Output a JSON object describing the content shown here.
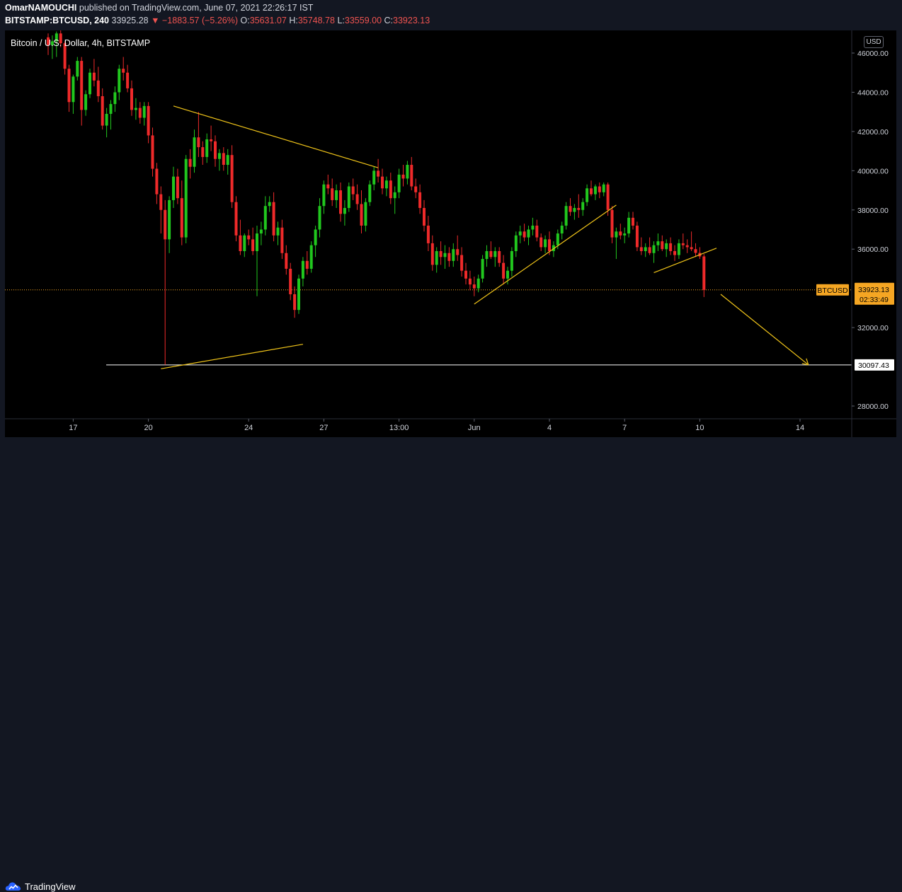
{
  "header": {
    "author": "OmarNAMOUCHI",
    "published_text": " published on TradingView.com, June 07, 2021 22:26:17 IST",
    "symbol": "BITSTAMP:BTCUSD, 240",
    "last": "33925.28",
    "arrow": "▼",
    "change": "−1883.57 (−5.26%)",
    "o_label": "O:",
    "o_value": "35631.07",
    "h_label": "H:",
    "h_value": "35748.78",
    "l_label": "L:",
    "l_value": "33559.00",
    "c_label": "C:",
    "c_value": "33923.13"
  },
  "chart_title": "Bitcoin / U.S. Dollar, 4h, BITSTAMP",
  "currency_badge": "USD",
  "footer": {
    "brand": "TradingView"
  },
  "colors": {
    "up": "#26a69a",
    "up_bright": "#21c71e",
    "down": "#ef2a2a",
    "trendline": "#f0c419",
    "price_tag": "#f5a623"
  },
  "chart_data": {
    "type": "candlestick",
    "title": "Bitcoin / U.S. Dollar, 4h, BITSTAMP",
    "ylim": [
      27000,
      47200
    ],
    "y_ticks": [
      "46000.00",
      "44000.00",
      "42000.00",
      "40000.00",
      "38000.00",
      "36000.00",
      "32000.00",
      "28000.00"
    ],
    "y_tick_values": [
      46000,
      44000,
      42000,
      40000,
      38000,
      36000,
      32000,
      28000
    ],
    "x_labels": [
      "17",
      "20",
      "24",
      "27",
      "13:00",
      "Jun",
      "4",
      "7",
      "10",
      "14"
    ],
    "x_label_bars": [
      6,
      24,
      48,
      66,
      84,
      102,
      120,
      138,
      156,
      180
    ],
    "bars_total": 205,
    "last_price": {
      "label": "BTCUSD",
      "value": "33923.13",
      "countdown": "02:33:49",
      "price": 33923.13
    },
    "support_level": {
      "value": "30097.43",
      "price": 30097.43
    },
    "candles": [
      [
        46800,
        47000,
        45900,
        46400
      ],
      [
        46400,
        46900,
        45700,
        46600
      ],
      [
        46600,
        47100,
        45800,
        47000
      ],
      [
        47000,
        47200,
        46300,
        46500
      ],
      [
        46500,
        46600,
        44900,
        45200
      ],
      [
        45200,
        45400,
        43000,
        43500
      ],
      [
        43500,
        44900,
        42900,
        44800
      ],
      [
        44800,
        45800,
        44600,
        45600
      ],
      [
        45600,
        45800,
        42300,
        43100
      ],
      [
        43100,
        44100,
        42800,
        43900
      ],
      [
        43900,
        45200,
        43700,
        45000
      ],
      [
        45000,
        45700,
        44300,
        44600
      ],
      [
        44600,
        45300,
        43500,
        43800
      ],
      [
        43800,
        44200,
        42100,
        42300
      ],
      [
        42300,
        43200,
        41700,
        42900
      ],
      [
        42900,
        43600,
        42100,
        43400
      ],
      [
        43400,
        44300,
        43000,
        44000
      ],
      [
        44000,
        45400,
        43600,
        45200
      ],
      [
        45200,
        45800,
        44600,
        45000
      ],
      [
        45000,
        45400,
        44000,
        44200
      ],
      [
        44200,
        44600,
        42800,
        43100
      ],
      [
        43100,
        43700,
        42600,
        43200
      ],
      [
        43200,
        43500,
        42400,
        42700
      ],
      [
        42700,
        43500,
        42300,
        43300
      ],
      [
        43300,
        43500,
        41400,
        41800
      ],
      [
        41800,
        42200,
        39700,
        40100
      ],
      [
        40100,
        40400,
        38300,
        38800
      ],
      [
        38800,
        39200,
        36800,
        38000
      ],
      [
        38000,
        38500,
        30100,
        36500
      ],
      [
        36500,
        38700,
        35800,
        38500
      ],
      [
        38500,
        40200,
        38100,
        39700
      ],
      [
        39700,
        40100,
        38300,
        38600
      ],
      [
        38600,
        39500,
        36200,
        36600
      ],
      [
        36600,
        40800,
        36300,
        40600
      ],
      [
        40600,
        41100,
        39600,
        40200
      ],
      [
        40200,
        42100,
        39900,
        41700
      ],
      [
        41700,
        43000,
        40700,
        41200
      ],
      [
        41200,
        41500,
        40300,
        40700
      ],
      [
        40700,
        41900,
        40400,
        41600
      ],
      [
        41600,
        42300,
        41000,
        41500
      ],
      [
        41500,
        41800,
        40200,
        40600
      ],
      [
        40600,
        41100,
        40000,
        40900
      ],
      [
        40900,
        41200,
        40000,
        40300
      ],
      [
        40300,
        41100,
        39800,
        40800
      ],
      [
        40800,
        41300,
        38100,
        38400
      ],
      [
        38400,
        38700,
        36400,
        36700
      ],
      [
        36700,
        37500,
        35700,
        35900
      ],
      [
        35900,
        36800,
        35600,
        36700
      ],
      [
        36700,
        37000,
        36200,
        36500
      ],
      [
        36500,
        37100,
        35700,
        35900
      ],
      [
        35900,
        37200,
        33600,
        36800
      ],
      [
        36800,
        37400,
        36200,
        37000
      ],
      [
        37000,
        38700,
        36700,
        38200
      ],
      [
        38200,
        38700,
        37900,
        38400
      ],
      [
        38400,
        38900,
        36400,
        36700
      ],
      [
        36700,
        37400,
        36200,
        37100
      ],
      [
        37100,
        37500,
        35500,
        35800
      ],
      [
        35800,
        36200,
        34700,
        35000
      ],
      [
        35000,
        35300,
        33400,
        33700
      ],
      [
        33700,
        34100,
        32500,
        32900
      ],
      [
        32900,
        34700,
        32700,
        34500
      ],
      [
        34500,
        35600,
        34100,
        35400
      ],
      [
        35400,
        35900,
        34700,
        35000
      ],
      [
        35000,
        36400,
        34800,
        36200
      ],
      [
        36200,
        37200,
        35600,
        37000
      ],
      [
        37000,
        38600,
        36600,
        38200
      ],
      [
        38200,
        39500,
        37800,
        39300
      ],
      [
        39300,
        39800,
        38800,
        39100
      ],
      [
        39100,
        39600,
        38200,
        38500
      ],
      [
        38500,
        39300,
        38100,
        39000
      ],
      [
        39000,
        39400,
        37400,
        37800
      ],
      [
        37800,
        38500,
        37200,
        38100
      ],
      [
        38100,
        39400,
        37900,
        39200
      ],
      [
        39200,
        39600,
        38500,
        38800
      ],
      [
        38800,
        39300,
        38000,
        38300
      ],
      [
        38300,
        39000,
        36800,
        37200
      ],
      [
        37200,
        38600,
        36900,
        38400
      ],
      [
        38400,
        39500,
        38200,
        39300
      ],
      [
        39300,
        40200,
        39000,
        40000
      ],
      [
        40000,
        40600,
        39400,
        39700
      ],
      [
        39700,
        40100,
        38800,
        39100
      ],
      [
        39100,
        39700,
        38700,
        39500
      ],
      [
        39500,
        39900,
        38300,
        38600
      ],
      [
        38600,
        39200,
        37800,
        38900
      ],
      [
        38900,
        40100,
        38600,
        39800
      ],
      [
        39800,
        40300,
        39200,
        39600
      ],
      [
        39600,
        40500,
        39300,
        40300
      ],
      [
        40300,
        40700,
        39000,
        39200
      ],
      [
        39200,
        39600,
        38600,
        38900
      ],
      [
        38900,
        39300,
        37800,
        38100
      ],
      [
        38100,
        38500,
        36900,
        37200
      ],
      [
        37200,
        37700,
        35900,
        36300
      ],
      [
        36300,
        36700,
        34900,
        35200
      ],
      [
        35200,
        36100,
        34800,
        35900
      ],
      [
        35900,
        36400,
        35200,
        35600
      ],
      [
        35600,
        36200,
        35000,
        35800
      ],
      [
        35800,
        36100,
        35100,
        35400
      ],
      [
        35400,
        36300,
        35100,
        36000
      ],
      [
        36000,
        36700,
        35400,
        35700
      ],
      [
        35700,
        36100,
        34600,
        34900
      ],
      [
        34900,
        35300,
        34200,
        34500
      ],
      [
        34500,
        34900,
        33900,
        34200
      ],
      [
        34200,
        34600,
        33600,
        34000
      ],
      [
        34000,
        34700,
        33800,
        34500
      ],
      [
        34500,
        35700,
        34300,
        35500
      ],
      [
        35500,
        36200,
        35100,
        35900
      ],
      [
        35900,
        36400,
        35500,
        35600
      ],
      [
        35600,
        36100,
        35100,
        35900
      ],
      [
        35900,
        36100,
        35100,
        35300
      ],
      [
        35300,
        35700,
        34200,
        34500
      ],
      [
        34500,
        35100,
        34200,
        34900
      ],
      [
        34900,
        36100,
        34600,
        35900
      ],
      [
        35900,
        36900,
        35600,
        36700
      ],
      [
        36700,
        37200,
        36300,
        36900
      ],
      [
        36900,
        37300,
        36400,
        36600
      ],
      [
        36600,
        37200,
        36200,
        37000
      ],
      [
        37000,
        37600,
        36700,
        37200
      ],
      [
        37200,
        37500,
        36400,
        36600
      ],
      [
        36600,
        36800,
        35900,
        36100
      ],
      [
        36100,
        36700,
        35800,
        36500
      ],
      [
        36500,
        36900,
        35700,
        35900
      ],
      [
        35900,
        36400,
        35600,
        36200
      ],
      [
        36200,
        37000,
        36000,
        36800
      ],
      [
        36800,
        37400,
        36500,
        37200
      ],
      [
        37200,
        38400,
        37000,
        38200
      ],
      [
        38200,
        38600,
        37700,
        37900
      ],
      [
        37900,
        38300,
        37500,
        38100
      ],
      [
        38100,
        38800,
        37600,
        38000
      ],
      [
        38000,
        38600,
        37700,
        38400
      ],
      [
        38400,
        39300,
        38200,
        39100
      ],
      [
        39100,
        39500,
        38700,
        38800
      ],
      [
        38800,
        39300,
        38500,
        39200
      ],
      [
        39200,
        39400,
        38600,
        38900
      ],
      [
        38900,
        39400,
        38700,
        39300
      ],
      [
        39300,
        39400,
        37700,
        38000
      ],
      [
        38000,
        38200,
        36300,
        36600
      ],
      [
        36600,
        37100,
        35500,
        36900
      ],
      [
        36900,
        37300,
        36500,
        36700
      ],
      [
        36700,
        37100,
        36300,
        36800
      ],
      [
        36800,
        37900,
        36600,
        37600
      ],
      [
        37600,
        37900,
        37000,
        37200
      ],
      [
        37200,
        37400,
        35900,
        36100
      ],
      [
        36100,
        36600,
        35700,
        35900
      ],
      [
        35900,
        36300,
        35600,
        36100
      ],
      [
        36100,
        36600,
        35700,
        35800
      ],
      [
        35800,
        36400,
        35300,
        36200
      ],
      [
        36200,
        36800,
        35900,
        36400
      ],
      [
        36400,
        36700,
        35900,
        36000
      ],
      [
        36000,
        36500,
        35600,
        36300
      ],
      [
        36300,
        36600,
        35700,
        35900
      ],
      [
        35900,
        36200,
        35400,
        35700
      ],
      [
        35700,
        36500,
        35500,
        36300
      ],
      [
        36300,
        36800,
        36000,
        36200
      ],
      [
        36200,
        36500,
        35800,
        36100
      ],
      [
        36100,
        36900,
        35900,
        36000
      ],
      [
        36000,
        36300,
        35600,
        35809
      ],
      [
        35809,
        36100,
        35500,
        35631
      ],
      [
        35631,
        35749,
        33559,
        33923
      ]
    ],
    "trendlines": [
      {
        "from_bar": 30,
        "from_price": 43300,
        "to_bar": 79,
        "to_price": 40150
      },
      {
        "from_bar": 27,
        "from_price": 29900,
        "to_bar": 61,
        "to_price": 31150
      },
      {
        "from_bar": 102,
        "from_price": 33200,
        "to_bar": 136,
        "to_price": 38250
      },
      {
        "from_bar": 145,
        "from_price": 34800,
        "to_bar": 160,
        "to_price": 36050
      },
      {
        "from_bar": 161,
        "from_price": 33700,
        "to_bar": 182,
        "to_price": 30100
      }
    ]
  }
}
